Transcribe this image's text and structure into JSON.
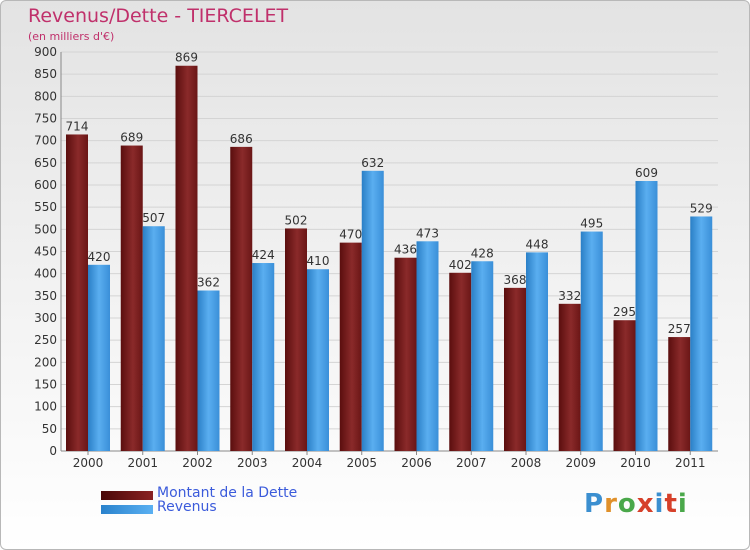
{
  "chart_data": {
    "type": "bar",
    "title": "Revenus/Dette - TIERCELET",
    "subtitle": "(en milliers d'€)",
    "categories": [
      "2000",
      "2001",
      "2002",
      "2003",
      "2004",
      "2005",
      "2006",
      "2007",
      "2008",
      "2009",
      "2010",
      "2011"
    ],
    "series": [
      {
        "name": "Montant de la Dette",
        "color": "#7a2020",
        "values": [
          714,
          689,
          869,
          686,
          502,
          470,
          436,
          402,
          368,
          332,
          295,
          257
        ]
      },
      {
        "name": "Revenus",
        "color": "#3d9be3",
        "values": [
          420,
          507,
          362,
          424,
          410,
          632,
          473,
          428,
          448,
          495,
          609,
          529
        ]
      }
    ],
    "ylim": [
      0,
      900
    ],
    "yticks": [
      0,
      50,
      100,
      150,
      200,
      250,
      300,
      350,
      400,
      450,
      500,
      550,
      600,
      650,
      700,
      750,
      800,
      850,
      900
    ],
    "grid": true,
    "legend_position": "bottom-left"
  },
  "logo": {
    "text": "Proxiti"
  }
}
